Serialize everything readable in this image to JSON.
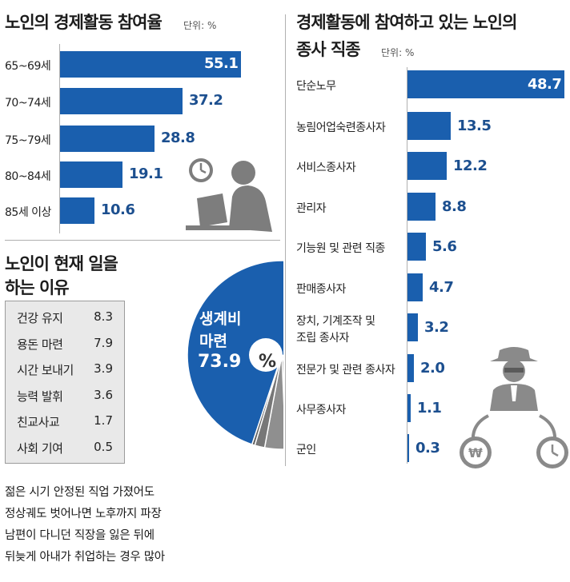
{
  "chart_data": [
    {
      "type": "bar",
      "title": "노인의 경제활동 참여율",
      "unit": "단위: %",
      "categories": [
        "65~69세",
        "70~74세",
        "75~79세",
        "80~84세",
        "85세 이상"
      ],
      "values": [
        "55.1",
        "37.2",
        "28.8",
        "19.1",
        "10.6"
      ],
      "xlim": [
        0,
        60
      ]
    },
    {
      "type": "pie",
      "title_line1": "노인이 현재 일을",
      "title_line2": "하는 이유",
      "main_label_line1": "생계비",
      "main_label_line2": "마련",
      "main_value": "73.9",
      "percent_symbol": "%",
      "labels": [
        "생계비 마련",
        "건강 유지",
        "용돈 마련",
        "시간 보내기",
        "능력 발휘",
        "친교사교",
        "사회 기여"
      ],
      "values": [
        73.9,
        8.3,
        7.9,
        3.9,
        3.6,
        1.7,
        0.5
      ],
      "reasons": [
        {
          "label": "건강 유지",
          "value": "8.3"
        },
        {
          "label": "용돈 마련",
          "value": "7.9"
        },
        {
          "label": "시간 보내기",
          "value": "3.9"
        },
        {
          "label": "능력 발휘",
          "value": "3.6"
        },
        {
          "label": "친교사교",
          "value": "1.7"
        },
        {
          "label": "사회 기여",
          "value": "0.5"
        }
      ]
    },
    {
      "type": "bar",
      "title_line1": "경제활동에 참여하고 있는 노인의",
      "title_line2": "종사 직종",
      "unit": "단위: %",
      "categories": [
        [
          "단순노무"
        ],
        [
          "농림어업숙련종사자"
        ],
        [
          "서비스종사자"
        ],
        [
          "관리자"
        ],
        [
          "기능원 및 관련 직종"
        ],
        [
          "판매종사자"
        ],
        [
          "장치, 기계조작 및",
          "조립 종사자"
        ],
        [
          "전문가 및 관련 종사자"
        ],
        [
          "사무종사자"
        ],
        [
          "군인"
        ]
      ],
      "values": [
        "48.7",
        "13.5",
        "12.2",
        "8.8",
        "5.6",
        "4.7",
        "3.2",
        "2.0",
        "1.1",
        "0.3"
      ],
      "xlim": [
        0,
        50
      ]
    }
  ],
  "caption_lines": [
    "젊은 시기 안정된 직업 가졌어도",
    "정상궤도 벗어나면 노후까지 파장",
    "남편이 다니던 직장을 잃은 뒤에",
    "뒤늦게 아내가 취업하는 경우 많아"
  ],
  "icons": [
    "clock-icon",
    "person-laptop-icon",
    "businessman-icon",
    "won-coin-icon",
    "clock-icon"
  ],
  "colors": {
    "bar": "#1a5fae",
    "value_text": "#1c4f8f",
    "pie_main": "#1a5fae",
    "box_bg": "#e9e9e9"
  }
}
